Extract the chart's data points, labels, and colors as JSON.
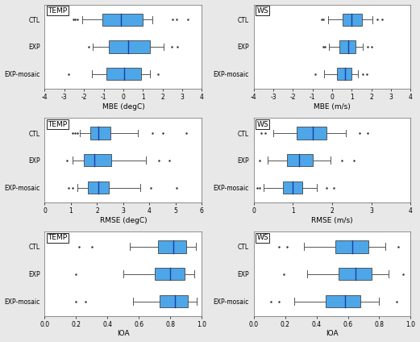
{
  "panels": [
    {
      "label": "TEMP",
      "xlabel": "MBE (degC)",
      "xlim": [
        -4,
        4
      ],
      "xticks": [
        -4,
        -3,
        -2,
        -1,
        0,
        1,
        2,
        3,
        4
      ],
      "xtick_labels": [
        "-4",
        "-3",
        "-2",
        "-1",
        "0",
        "1",
        "2",
        "3",
        "4"
      ],
      "rows": [
        "CTL",
        "EXP",
        "EXP-mosaic"
      ],
      "boxes": [
        {
          "q1": -1.05,
          "median": -0.1,
          "q3": 1.0,
          "whisker_low": -2.1,
          "whisker_high": 1.5,
          "fliers_low": [
            -2.35,
            -2.45,
            -2.55
          ],
          "fliers_high": [
            2.5,
            2.7,
            3.3
          ]
        },
        {
          "q1": -0.75,
          "median": 0.25,
          "q3": 1.35,
          "whisker_low": -1.55,
          "whisker_high": 2.05,
          "fliers_low": [
            -1.75
          ],
          "fliers_high": [
            2.45,
            2.75
          ]
        },
        {
          "q1": -0.85,
          "median": 0.05,
          "q3": 0.9,
          "whisker_low": -1.6,
          "whisker_high": 1.35,
          "fliers_low": [
            -2.8
          ],
          "fliers_high": [
            1.75
          ]
        }
      ]
    },
    {
      "label": "WS",
      "xlabel": "MBE (m/s)",
      "xlim": [
        -4,
        4
      ],
      "xticks": [
        -4,
        -3,
        -2,
        -1,
        0,
        1,
        2,
        3,
        4
      ],
      "xtick_labels": [
        "-4",
        "-3",
        "-2",
        "-1",
        "0",
        "1",
        "2",
        "3",
        "4"
      ],
      "rows": [
        "CTL",
        "EXP",
        "EXP-mosaic"
      ],
      "boxes": [
        {
          "q1": 0.55,
          "median": 1.0,
          "q3": 1.5,
          "whisker_low": -0.2,
          "whisker_high": 2.05,
          "fliers_low": [
            -0.55,
            -0.45
          ],
          "fliers_high": [
            2.3,
            2.55
          ]
        },
        {
          "q1": 0.35,
          "median": 0.8,
          "q3": 1.2,
          "whisker_low": -0.15,
          "whisker_high": 1.55,
          "fliers_low": [
            -0.35,
            -0.45
          ],
          "fliers_high": [
            1.8,
            2.0
          ]
        },
        {
          "q1": 0.25,
          "median": 0.65,
          "q3": 1.0,
          "whisker_low": -0.4,
          "whisker_high": 1.3,
          "fliers_low": [
            -0.85
          ],
          "fliers_high": [
            1.55,
            1.75
          ]
        }
      ]
    },
    {
      "label": "TEMP",
      "xlabel": "RMSE (degC)",
      "xlim": [
        0,
        6
      ],
      "xticks": [
        0,
        1,
        2,
        3,
        4,
        5,
        6
      ],
      "xtick_labels": [
        "0",
        "1",
        "2",
        "3",
        "4",
        "5",
        "6"
      ],
      "rows": [
        "CTL",
        "EXP",
        "EXP-mosaic"
      ],
      "boxes": [
        {
          "q1": 1.75,
          "median": 2.05,
          "q3": 2.5,
          "whisker_low": 1.35,
          "whisker_high": 3.55,
          "fliers_low": [
            1.05,
            1.15,
            1.25
          ],
          "fliers_high": [
            4.1,
            4.5,
            5.4
          ]
        },
        {
          "q1": 1.5,
          "median": 1.9,
          "q3": 2.55,
          "whisker_low": 1.05,
          "whisker_high": 3.85,
          "fliers_low": [
            0.85
          ],
          "fliers_high": [
            4.35,
            4.75
          ]
        },
        {
          "q1": 1.65,
          "median": 2.05,
          "q3": 2.45,
          "whisker_low": 1.25,
          "whisker_high": 3.65,
          "fliers_low": [
            0.9,
            1.05
          ],
          "fliers_high": [
            4.05,
            5.05
          ]
        }
      ]
    },
    {
      "label": "WS",
      "xlabel": "RMSE (m/s)",
      "xlim": [
        0,
        4
      ],
      "xticks": [
        0,
        1,
        2,
        3,
        4
      ],
      "xtick_labels": [
        "0",
        "1",
        "2",
        "3",
        "4"
      ],
      "rows": [
        "CTL",
        "EXP",
        "EXP-mosaic"
      ],
      "boxes": [
        {
          "q1": 1.1,
          "median": 1.5,
          "q3": 1.85,
          "whisker_low": 0.5,
          "whisker_high": 2.35,
          "fliers_low": [
            0.2,
            0.3
          ],
          "fliers_high": [
            2.7,
            2.9
          ]
        },
        {
          "q1": 0.85,
          "median": 1.15,
          "q3": 1.5,
          "whisker_low": 0.35,
          "whisker_high": 1.95,
          "fliers_low": [
            0.15
          ],
          "fliers_high": [
            2.25,
            2.55
          ]
        },
        {
          "q1": 0.75,
          "median": 1.0,
          "q3": 1.25,
          "whisker_low": 0.25,
          "whisker_high": 1.6,
          "fliers_low": [
            0.1,
            0.15
          ],
          "fliers_high": [
            1.85,
            2.05
          ]
        }
      ]
    },
    {
      "label": "TEMP",
      "xlabel": "IOA",
      "xlim": [
        0.0,
        1.0
      ],
      "xticks": [
        0.0,
        0.2,
        0.4,
        0.6,
        0.8,
        1.0
      ],
      "xtick_labels": [
        "0.0",
        "0.2",
        "0.4",
        "0.6",
        "0.8",
        "1.0"
      ],
      "rows": [
        "CTL",
        "EXP",
        "EXP-mosaic"
      ],
      "boxes": [
        {
          "q1": 0.72,
          "median": 0.82,
          "q3": 0.9,
          "whisker_low": 0.54,
          "whisker_high": 0.96,
          "fliers_low": [
            0.22,
            0.3
          ],
          "fliers_high": []
        },
        {
          "q1": 0.7,
          "median": 0.8,
          "q3": 0.89,
          "whisker_low": 0.5,
          "whisker_high": 0.95,
          "fliers_low": [
            0.2
          ],
          "fliers_high": []
        },
        {
          "q1": 0.73,
          "median": 0.83,
          "q3": 0.91,
          "whisker_low": 0.56,
          "whisker_high": 0.97,
          "fliers_low": [
            0.2,
            0.26
          ],
          "fliers_high": []
        }
      ]
    },
    {
      "label": "WS",
      "xlabel": "IOA",
      "xlim": [
        0.0,
        1.0
      ],
      "xticks": [
        0.0,
        0.2,
        0.4,
        0.6,
        0.8,
        1.0
      ],
      "xtick_labels": [
        "0.0",
        "0.2",
        "0.4",
        "0.6",
        "0.8",
        "1.0"
      ],
      "rows": [
        "CTL",
        "EXP",
        "EXP-mosaic"
      ],
      "boxes": [
        {
          "q1": 0.52,
          "median": 0.63,
          "q3": 0.73,
          "whisker_low": 0.32,
          "whisker_high": 0.84,
          "fliers_low": [
            0.16,
            0.21
          ],
          "fliers_high": [
            0.92
          ]
        },
        {
          "q1": 0.54,
          "median": 0.65,
          "q3": 0.75,
          "whisker_low": 0.34,
          "whisker_high": 0.86,
          "fliers_low": [
            0.19
          ],
          "fliers_high": [
            0.95
          ]
        },
        {
          "q1": 0.46,
          "median": 0.58,
          "q3": 0.68,
          "whisker_low": 0.26,
          "whisker_high": 0.8,
          "fliers_low": [
            0.11,
            0.16
          ],
          "fliers_high": [
            0.91
          ]
        }
      ]
    }
  ],
  "box_color": "#4da6e8",
  "box_edge_color": "#444444",
  "median_color": "#1a3faa",
  "whisker_color": "#555555",
  "flier_color": "#333333",
  "background_color": "#ffffff",
  "fig_bg": "#e8e8e8"
}
